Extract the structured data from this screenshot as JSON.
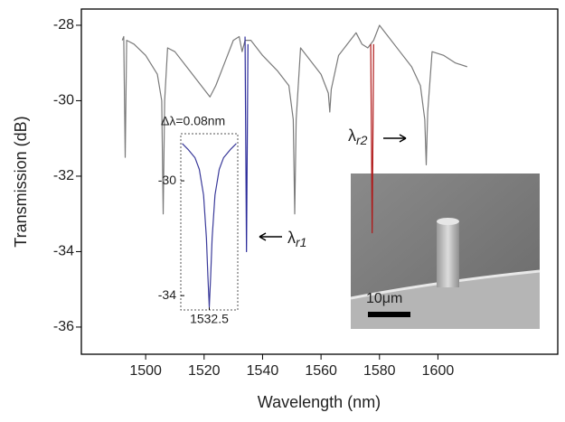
{
  "chart_data": [
    {
      "type": "line",
      "x_label": "Wavelength (nm)",
      "y_label": "Transmission (dB)",
      "xlim": [
        1478,
        1641
      ],
      "ylim": [
        -36.72,
        -27.57
      ],
      "xticks": [
        1500,
        1520,
        1540,
        1560,
        1580,
        1600
      ],
      "yticks": [
        -36,
        -34,
        -32,
        -30,
        -28
      ],
      "series": [
        {
          "color": "#7a7a7a",
          "x": [
            1492,
            1492.5,
            1493,
            1493.5,
            1496,
            1500,
            1504,
            1505.5,
            1506,
            1506.5,
            1507.5,
            1510,
            1515,
            1520,
            1522,
            1524,
            1527,
            1530,
            1532,
            1533,
            1534,
            1536,
            1540,
            1545,
            1549,
            1550.5,
            1551,
            1551.5,
            1553,
            1556,
            1560,
            1562.5,
            1563,
            1563.5,
            1566,
            1570,
            1572,
            1574,
            1576,
            1578,
            1580,
            1583,
            1587,
            1591,
            1594,
            1595.5,
            1596,
            1596.5,
            1598,
            1602,
            1606,
            1610
          ],
          "values": [
            -28.4,
            -28.3,
            -31.5,
            -28.4,
            -28.5,
            -28.8,
            -29.3,
            -30,
            -33,
            -30,
            -28.6,
            -28.7,
            -29.2,
            -29.7,
            -29.9,
            -29.6,
            -29,
            -28.4,
            -28.3,
            -28.7,
            -28.4,
            -28.4,
            -28.8,
            -29.2,
            -29.6,
            -30.5,
            -33,
            -30.5,
            -28.6,
            -28.9,
            -29.3,
            -29.8,
            -30.3,
            -29.7,
            -28.8,
            -28.4,
            -28.2,
            -28.5,
            -28.6,
            -28.4,
            -28,
            -28.3,
            -28.7,
            -29.1,
            -29.6,
            -30.5,
            -31.7,
            -30.3,
            -28.7,
            -28.8,
            -29,
            -29.1
          ]
        },
        {
          "color": "#2b2b9a",
          "x": [
            1534,
            1534.5,
            1535
          ],
          "values": [
            -28.3,
            -34,
            -28.5
          ]
        },
        {
          "color": "#b01818",
          "x": [
            1577,
            1577.5,
            1578
          ],
          "values": [
            -28.5,
            -33.5,
            -28.5
          ]
        }
      ],
      "annotations": [
        {
          "text": "λ",
          "subscript": "r1"
        },
        {
          "text": "λ",
          "subscript": "r2"
        }
      ],
      "image_label": "10μm"
    },
    {
      "type": "line",
      "annotation": "Δλ=0.08nm",
      "xlim": [
        1532.3,
        1532.7
      ],
      "ylim": [
        -34.5,
        -28.36
      ],
      "xticks": [
        1532.5
      ],
      "yticks": [
        -34,
        -30
      ],
      "series": [
        {
          "color": "#3a3a9a",
          "x": [
            1532.31,
            1532.35,
            1532.4,
            1532.43,
            1532.46,
            1532.48,
            1532.49,
            1532.5,
            1532.51,
            1532.52,
            1532.54,
            1532.57,
            1532.6,
            1532.65,
            1532.69
          ],
          "values": [
            -28.7,
            -28.9,
            -29.2,
            -29.6,
            -30.5,
            -32,
            -33.3,
            -34.4,
            -33.3,
            -32,
            -30.5,
            -29.6,
            -29.2,
            -28.9,
            -28.7
          ]
        }
      ]
    }
  ]
}
